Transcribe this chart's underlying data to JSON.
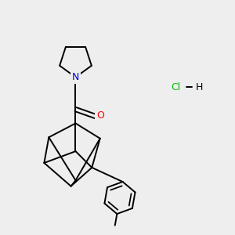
{
  "bg_color": "#eeeeee",
  "atom_colors": {
    "N": "#0000cc",
    "O": "#ff0000",
    "Cl": "#00bb00",
    "H": "#000000",
    "C": "#000000"
  },
  "bond_width": 1.4,
  "figsize": [
    3.0,
    3.0
  ],
  "dpi": 100
}
